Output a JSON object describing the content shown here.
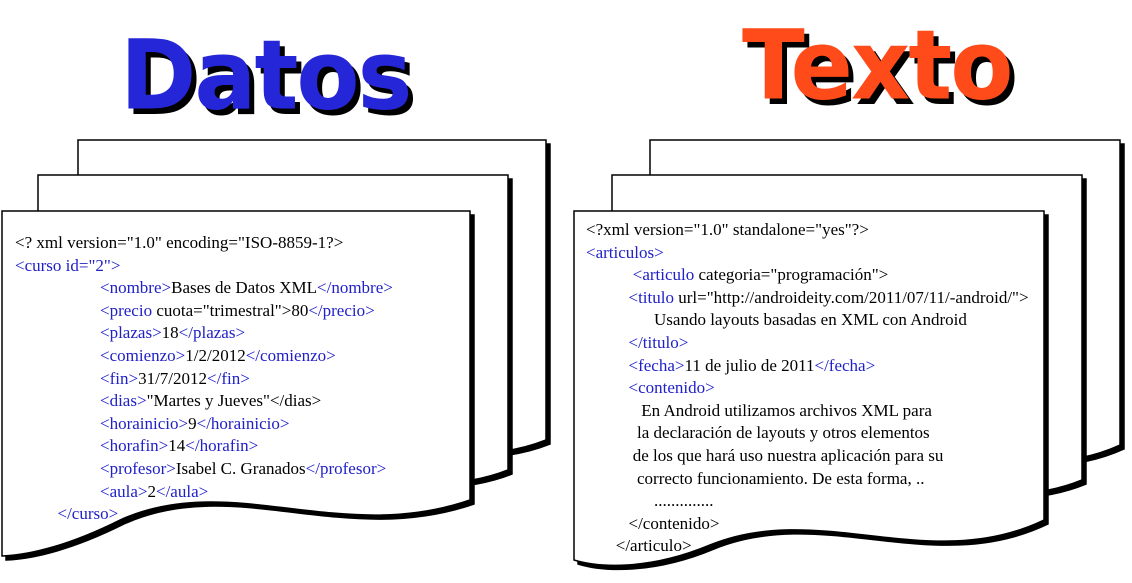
{
  "headings": {
    "datos": "Datos",
    "texto": "Texto"
  },
  "colors": {
    "datos_heading": "#2626d9",
    "texto_heading": "#ff4a1a",
    "xml_tag": "#2020c8",
    "text": "#000000"
  },
  "documents": {
    "datos": {
      "lines": [
        [
          {
            "t": "<? xml version=\"1.0\" encoding=\"ISO-8859-1?>",
            "c": "text"
          }
        ],
        [
          {
            "t": "<curso id=\"2\">",
            "c": "tag"
          }
        ],
        [
          {
            "t": "                    ",
            "c": "text"
          },
          {
            "t": "<nombre>",
            "c": "tag"
          },
          {
            "t": "Bases de Datos XML",
            "c": "text"
          },
          {
            "t": "</nombre>",
            "c": "tag"
          }
        ],
        [
          {
            "t": "                    ",
            "c": "text"
          },
          {
            "t": "<precio ",
            "c": "tag"
          },
          {
            "t": "cuota=\"trimestral\">80",
            "c": "text"
          },
          {
            "t": "</precio>",
            "c": "tag"
          }
        ],
        [
          {
            "t": "                    ",
            "c": "text"
          },
          {
            "t": "<plazas>",
            "c": "tag"
          },
          {
            "t": "18",
            "c": "text"
          },
          {
            "t": "</plazas>",
            "c": "tag"
          }
        ],
        [
          {
            "t": "                    ",
            "c": "text"
          },
          {
            "t": "<comienzo>",
            "c": "tag"
          },
          {
            "t": "1/2/2012",
            "c": "text"
          },
          {
            "t": "</comienzo>",
            "c": "tag"
          }
        ],
        [
          {
            "t": "                    ",
            "c": "text"
          },
          {
            "t": "<fin>",
            "c": "tag"
          },
          {
            "t": "31/7/2012",
            "c": "text"
          },
          {
            "t": "</fin>",
            "c": "tag"
          }
        ],
        [
          {
            "t": "                    ",
            "c": "text"
          },
          {
            "t": "<dias>",
            "c": "tag"
          },
          {
            "t": "\"Martes y Jueves\"</dias>",
            "c": "text"
          }
        ],
        [
          {
            "t": "                    ",
            "c": "text"
          },
          {
            "t": "<horainicio>",
            "c": "tag"
          },
          {
            "t": "9",
            "c": "text"
          },
          {
            "t": "</horainicio>",
            "c": "tag"
          }
        ],
        [
          {
            "t": "                    ",
            "c": "text"
          },
          {
            "t": "<horafin>",
            "c": "tag"
          },
          {
            "t": "14",
            "c": "text"
          },
          {
            "t": "</horafin>",
            "c": "tag"
          }
        ],
        [
          {
            "t": "                    ",
            "c": "text"
          },
          {
            "t": "<profesor>",
            "c": "tag"
          },
          {
            "t": "Isabel C. Granados",
            "c": "text"
          },
          {
            "t": "</profesor>",
            "c": "tag"
          }
        ],
        [
          {
            "t": "                    ",
            "c": "text"
          },
          {
            "t": "<aula>",
            "c": "tag"
          },
          {
            "t": "2",
            "c": "text"
          },
          {
            "t": "</aula>",
            "c": "tag"
          }
        ],
        [
          {
            "t": "          ",
            "c": "text"
          },
          {
            "t": "</curso>",
            "c": "tag"
          }
        ]
      ]
    },
    "texto": {
      "lines": [
        [
          {
            "t": "<?xml version=\"1.0\" standalone=\"yes\"?>",
            "c": "text"
          }
        ],
        [
          {
            "t": "<articulos>",
            "c": "tag"
          }
        ],
        [
          {
            "t": "           ",
            "c": "text"
          },
          {
            "t": "<articulo ",
            "c": "tag"
          },
          {
            "t": "categoria=\"programación\">",
            "c": "text"
          }
        ],
        [
          {
            "t": "          ",
            "c": "text"
          },
          {
            "t": "<titulo ",
            "c": "tag"
          },
          {
            "t": "url=\"http://androideity.com/2011/07/11/-android/\">",
            "c": "text"
          }
        ],
        [
          {
            "t": "                Usando layouts basadas en XML con Android",
            "c": "text"
          }
        ],
        [
          {
            "t": "          ",
            "c": "text"
          },
          {
            "t": "</titulo>",
            "c": "tag"
          }
        ],
        [
          {
            "t": "          ",
            "c": "text"
          },
          {
            "t": "<fecha>",
            "c": "tag"
          },
          {
            "t": "11 de julio de 2011",
            "c": "text"
          },
          {
            "t": "</fecha>",
            "c": "tag"
          }
        ],
        [
          {
            "t": "          ",
            "c": "text"
          },
          {
            "t": "<contenido>",
            "c": "tag"
          }
        ],
        [
          {
            "t": "             En Android utilizamos archivos XML para",
            "c": "text"
          }
        ],
        [
          {
            "t": "            la declaración de layouts y otros elementos",
            "c": "text"
          }
        ],
        [
          {
            "t": "           de los que hará uso nuestra aplicación para su",
            "c": "text"
          }
        ],
        [
          {
            "t": "            correcto funcionamiento. De esta forma, ..",
            "c": "text"
          }
        ],
        [
          {
            "t": "                ..............",
            "c": "text"
          }
        ],
        [
          {
            "t": "          </contenido>",
            "c": "text"
          }
        ],
        [
          {
            "t": "       </articulo>",
            "c": "text"
          }
        ]
      ]
    }
  }
}
